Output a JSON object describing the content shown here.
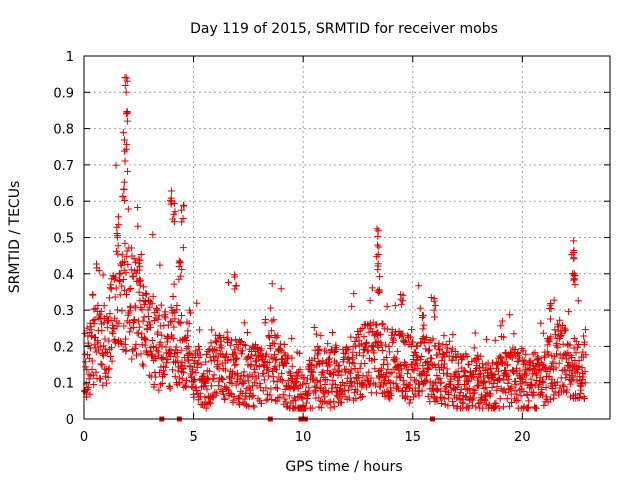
{
  "chart_data": {
    "type": "scatter",
    "title": "Day 119 of 2015, SRMTID for receiver mobs",
    "xlabel": "GPS time / hours",
    "ylabel": "SRMTID / TECUs",
    "xlim": [
      0,
      24
    ],
    "ylim": [
      0,
      1
    ],
    "xticks": [
      "0",
      "5",
      "10",
      "15",
      "20"
    ],
    "xtick_values": [
      0,
      5,
      10,
      15,
      20
    ],
    "yticks": [
      "0",
      "0.1",
      "0.2",
      "0.3",
      "0.4",
      "0.5",
      "0.6",
      "0.7",
      "0.8",
      "0.9",
      "1"
    ],
    "ytick_values": [
      0,
      0.1,
      0.2,
      0.3,
      0.4,
      0.5,
      0.6,
      0.7,
      0.8,
      0.9,
      1
    ],
    "grid": true,
    "marker": "plus",
    "color": "#e00000",
    "envelope_description": "approximate baseline level of the point cloud over time (hours, TECU)",
    "baseline": [
      [
        0.0,
        0.14
      ],
      [
        0.5,
        0.2
      ],
      [
        1.0,
        0.2
      ],
      [
        1.5,
        0.33
      ],
      [
        2.0,
        0.33
      ],
      [
        2.5,
        0.3
      ],
      [
        3.0,
        0.22
      ],
      [
        3.5,
        0.18
      ],
      [
        4.0,
        0.2
      ],
      [
        4.5,
        0.2
      ],
      [
        5.0,
        0.14
      ],
      [
        5.5,
        0.1
      ],
      [
        6.0,
        0.14
      ],
      [
        6.5,
        0.14
      ],
      [
        7.0,
        0.13
      ],
      [
        7.5,
        0.12
      ],
      [
        8.0,
        0.12
      ],
      [
        8.5,
        0.15
      ],
      [
        9.0,
        0.14
      ],
      [
        9.5,
        0.08
      ],
      [
        10.0,
        0.06
      ],
      [
        10.5,
        0.11
      ],
      [
        11.0,
        0.11
      ],
      [
        11.5,
        0.12
      ],
      [
        12.0,
        0.13
      ],
      [
        12.5,
        0.15
      ],
      [
        13.0,
        0.17
      ],
      [
        13.5,
        0.17
      ],
      [
        14.0,
        0.15
      ],
      [
        14.5,
        0.15
      ],
      [
        15.0,
        0.13
      ],
      [
        15.5,
        0.14
      ],
      [
        16.0,
        0.14
      ],
      [
        16.5,
        0.13
      ],
      [
        17.0,
        0.1
      ],
      [
        17.5,
        0.1
      ],
      [
        18.0,
        0.1
      ],
      [
        18.5,
        0.08
      ],
      [
        19.0,
        0.1
      ],
      [
        19.5,
        0.12
      ],
      [
        20.0,
        0.1
      ],
      [
        20.5,
        0.1
      ],
      [
        21.0,
        0.12
      ],
      [
        21.5,
        0.16
      ],
      [
        22.0,
        0.16
      ],
      [
        22.5,
        0.15
      ],
      [
        22.9,
        0.15
      ]
    ],
    "spikes": [
      {
        "x": 1.55,
        "y": 0.56
      },
      {
        "x": 1.8,
        "y": 0.66
      },
      {
        "x": 1.9,
        "y": 0.77
      },
      {
        "x": 1.92,
        "y": 0.95
      },
      {
        "x": 1.95,
        "y": 0.88
      },
      {
        "x": 2.5,
        "y": 0.43
      },
      {
        "x": 4.0,
        "y": 0.63
      },
      {
        "x": 4.1,
        "y": 0.6
      },
      {
        "x": 4.5,
        "y": 0.59
      },
      {
        "x": 4.4,
        "y": 0.45
      },
      {
        "x": 6.9,
        "y": 0.41
      },
      {
        "x": 13.4,
        "y": 0.53
      },
      {
        "x": 13.4,
        "y": 0.46
      },
      {
        "x": 13.45,
        "y": 0.4
      },
      {
        "x": 14.5,
        "y": 0.36
      },
      {
        "x": 15.5,
        "y": 0.3
      },
      {
        "x": 16.0,
        "y": 0.34
      },
      {
        "x": 21.3,
        "y": 0.32
      },
      {
        "x": 22.3,
        "y": 0.5
      },
      {
        "x": 22.35,
        "y": 0.45
      },
      {
        "x": 22.4,
        "y": 0.43
      }
    ],
    "zero_value_points": [
      3.55,
      4.35,
      8.5,
      9.9,
      10.0,
      10.1,
      15.9
    ]
  }
}
